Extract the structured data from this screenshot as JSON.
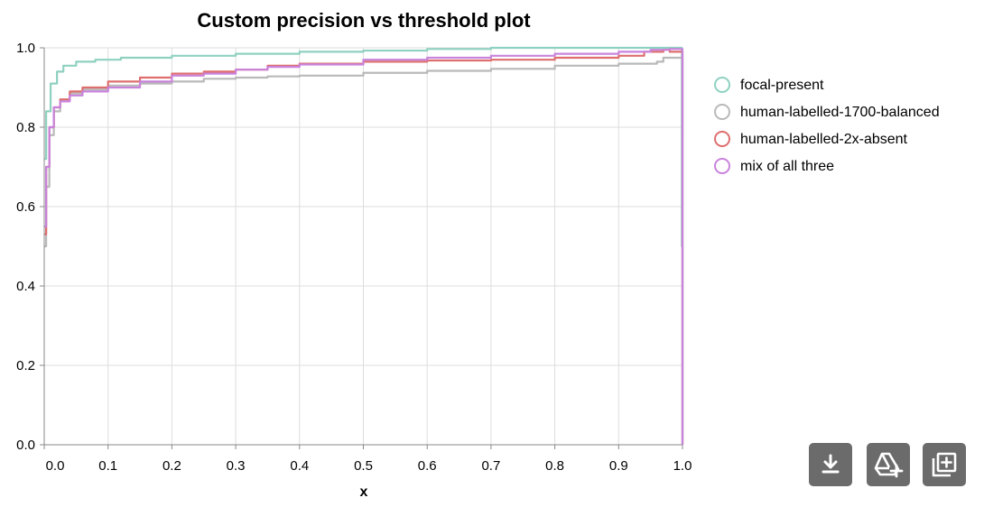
{
  "chart_data": {
    "type": "line",
    "title": "Custom precision vs threshold plot",
    "xlabel": "x",
    "ylabel": "",
    "xlim": [
      0.0,
      1.0
    ],
    "ylim": [
      0.0,
      1.0
    ],
    "x_ticks": [
      "0.0",
      "0.1",
      "0.2",
      "0.3",
      "0.4",
      "0.5",
      "0.6",
      "0.7",
      "0.8",
      "0.9",
      "1.0"
    ],
    "y_ticks": [
      "0.0",
      "0.2",
      "0.4",
      "0.6",
      "0.8",
      "1.0"
    ],
    "grid": true,
    "legend_position": "right",
    "series": [
      {
        "name": "focal-present",
        "color": "#8fd1c1",
        "points": [
          [
            0.0,
            0.72
          ],
          [
            0.003,
            0.84
          ],
          [
            0.01,
            0.91
          ],
          [
            0.02,
            0.94
          ],
          [
            0.03,
            0.955
          ],
          [
            0.05,
            0.965
          ],
          [
            0.08,
            0.97
          ],
          [
            0.12,
            0.975
          ],
          [
            0.2,
            0.98
          ],
          [
            0.3,
            0.985
          ],
          [
            0.4,
            0.99
          ],
          [
            0.5,
            0.993
          ],
          [
            0.6,
            0.997
          ],
          [
            0.7,
            1.0
          ],
          [
            0.8,
            1.0
          ],
          [
            0.9,
            1.0
          ],
          [
            0.96,
            1.0
          ],
          [
            0.99,
            1.0
          ],
          [
            0.999,
            0.5
          ],
          [
            1.0,
            0.0
          ]
        ]
      },
      {
        "name": "human-labelled-1700-balanced",
        "color": "#b9b9b9",
        "points": [
          [
            0.0,
            0.5
          ],
          [
            0.003,
            0.65
          ],
          [
            0.008,
            0.78
          ],
          [
            0.015,
            0.84
          ],
          [
            0.025,
            0.87
          ],
          [
            0.04,
            0.885
          ],
          [
            0.06,
            0.895
          ],
          [
            0.1,
            0.905
          ],
          [
            0.15,
            0.91
          ],
          [
            0.2,
            0.915
          ],
          [
            0.25,
            0.922
          ],
          [
            0.3,
            0.925
          ],
          [
            0.35,
            0.928
          ],
          [
            0.4,
            0.93
          ],
          [
            0.5,
            0.937
          ],
          [
            0.6,
            0.942
          ],
          [
            0.7,
            0.947
          ],
          [
            0.8,
            0.955
          ],
          [
            0.9,
            0.96
          ],
          [
            0.96,
            0.965
          ],
          [
            0.97,
            0.975
          ],
          [
            1.0,
            0.01
          ]
        ]
      },
      {
        "name": "human-labelled-2x-absent",
        "color": "#de6e6e",
        "points": [
          [
            0.0,
            0.53
          ],
          [
            0.003,
            0.7
          ],
          [
            0.008,
            0.8
          ],
          [
            0.015,
            0.85
          ],
          [
            0.025,
            0.87
          ],
          [
            0.04,
            0.89
          ],
          [
            0.06,
            0.9
          ],
          [
            0.1,
            0.915
          ],
          [
            0.15,
            0.925
          ],
          [
            0.2,
            0.935
          ],
          [
            0.25,
            0.94
          ],
          [
            0.3,
            0.945
          ],
          [
            0.35,
            0.955
          ],
          [
            0.4,
            0.96
          ],
          [
            0.5,
            0.965
          ],
          [
            0.6,
            0.968
          ],
          [
            0.7,
            0.97
          ],
          [
            0.8,
            0.975
          ],
          [
            0.9,
            0.98
          ],
          [
            0.94,
            0.99
          ],
          [
            0.97,
            0.995
          ],
          [
            0.98,
            0.99
          ],
          [
            1.0,
            0.0
          ]
        ]
      },
      {
        "name": "mix of all three",
        "color": "#c983dc",
        "points": [
          [
            0.0,
            0.55
          ],
          [
            0.003,
            0.7
          ],
          [
            0.008,
            0.8
          ],
          [
            0.015,
            0.85
          ],
          [
            0.025,
            0.865
          ],
          [
            0.04,
            0.88
          ],
          [
            0.06,
            0.89
          ],
          [
            0.1,
            0.9
          ],
          [
            0.15,
            0.915
          ],
          [
            0.2,
            0.93
          ],
          [
            0.25,
            0.935
          ],
          [
            0.3,
            0.945
          ],
          [
            0.35,
            0.952
          ],
          [
            0.4,
            0.958
          ],
          [
            0.5,
            0.97
          ],
          [
            0.6,
            0.975
          ],
          [
            0.7,
            0.98
          ],
          [
            0.8,
            0.985
          ],
          [
            0.9,
            0.99
          ],
          [
            0.95,
            0.995
          ],
          [
            0.98,
            0.997
          ],
          [
            1.0,
            0.0
          ]
        ]
      }
    ]
  },
  "toolbar": {
    "buttons": [
      {
        "name": "download-button",
        "icon": "download-icon"
      },
      {
        "name": "save-to-drive-button",
        "icon": "drive-add-icon"
      },
      {
        "name": "add-to-notebook-button",
        "icon": "add-box-icon"
      }
    ]
  }
}
